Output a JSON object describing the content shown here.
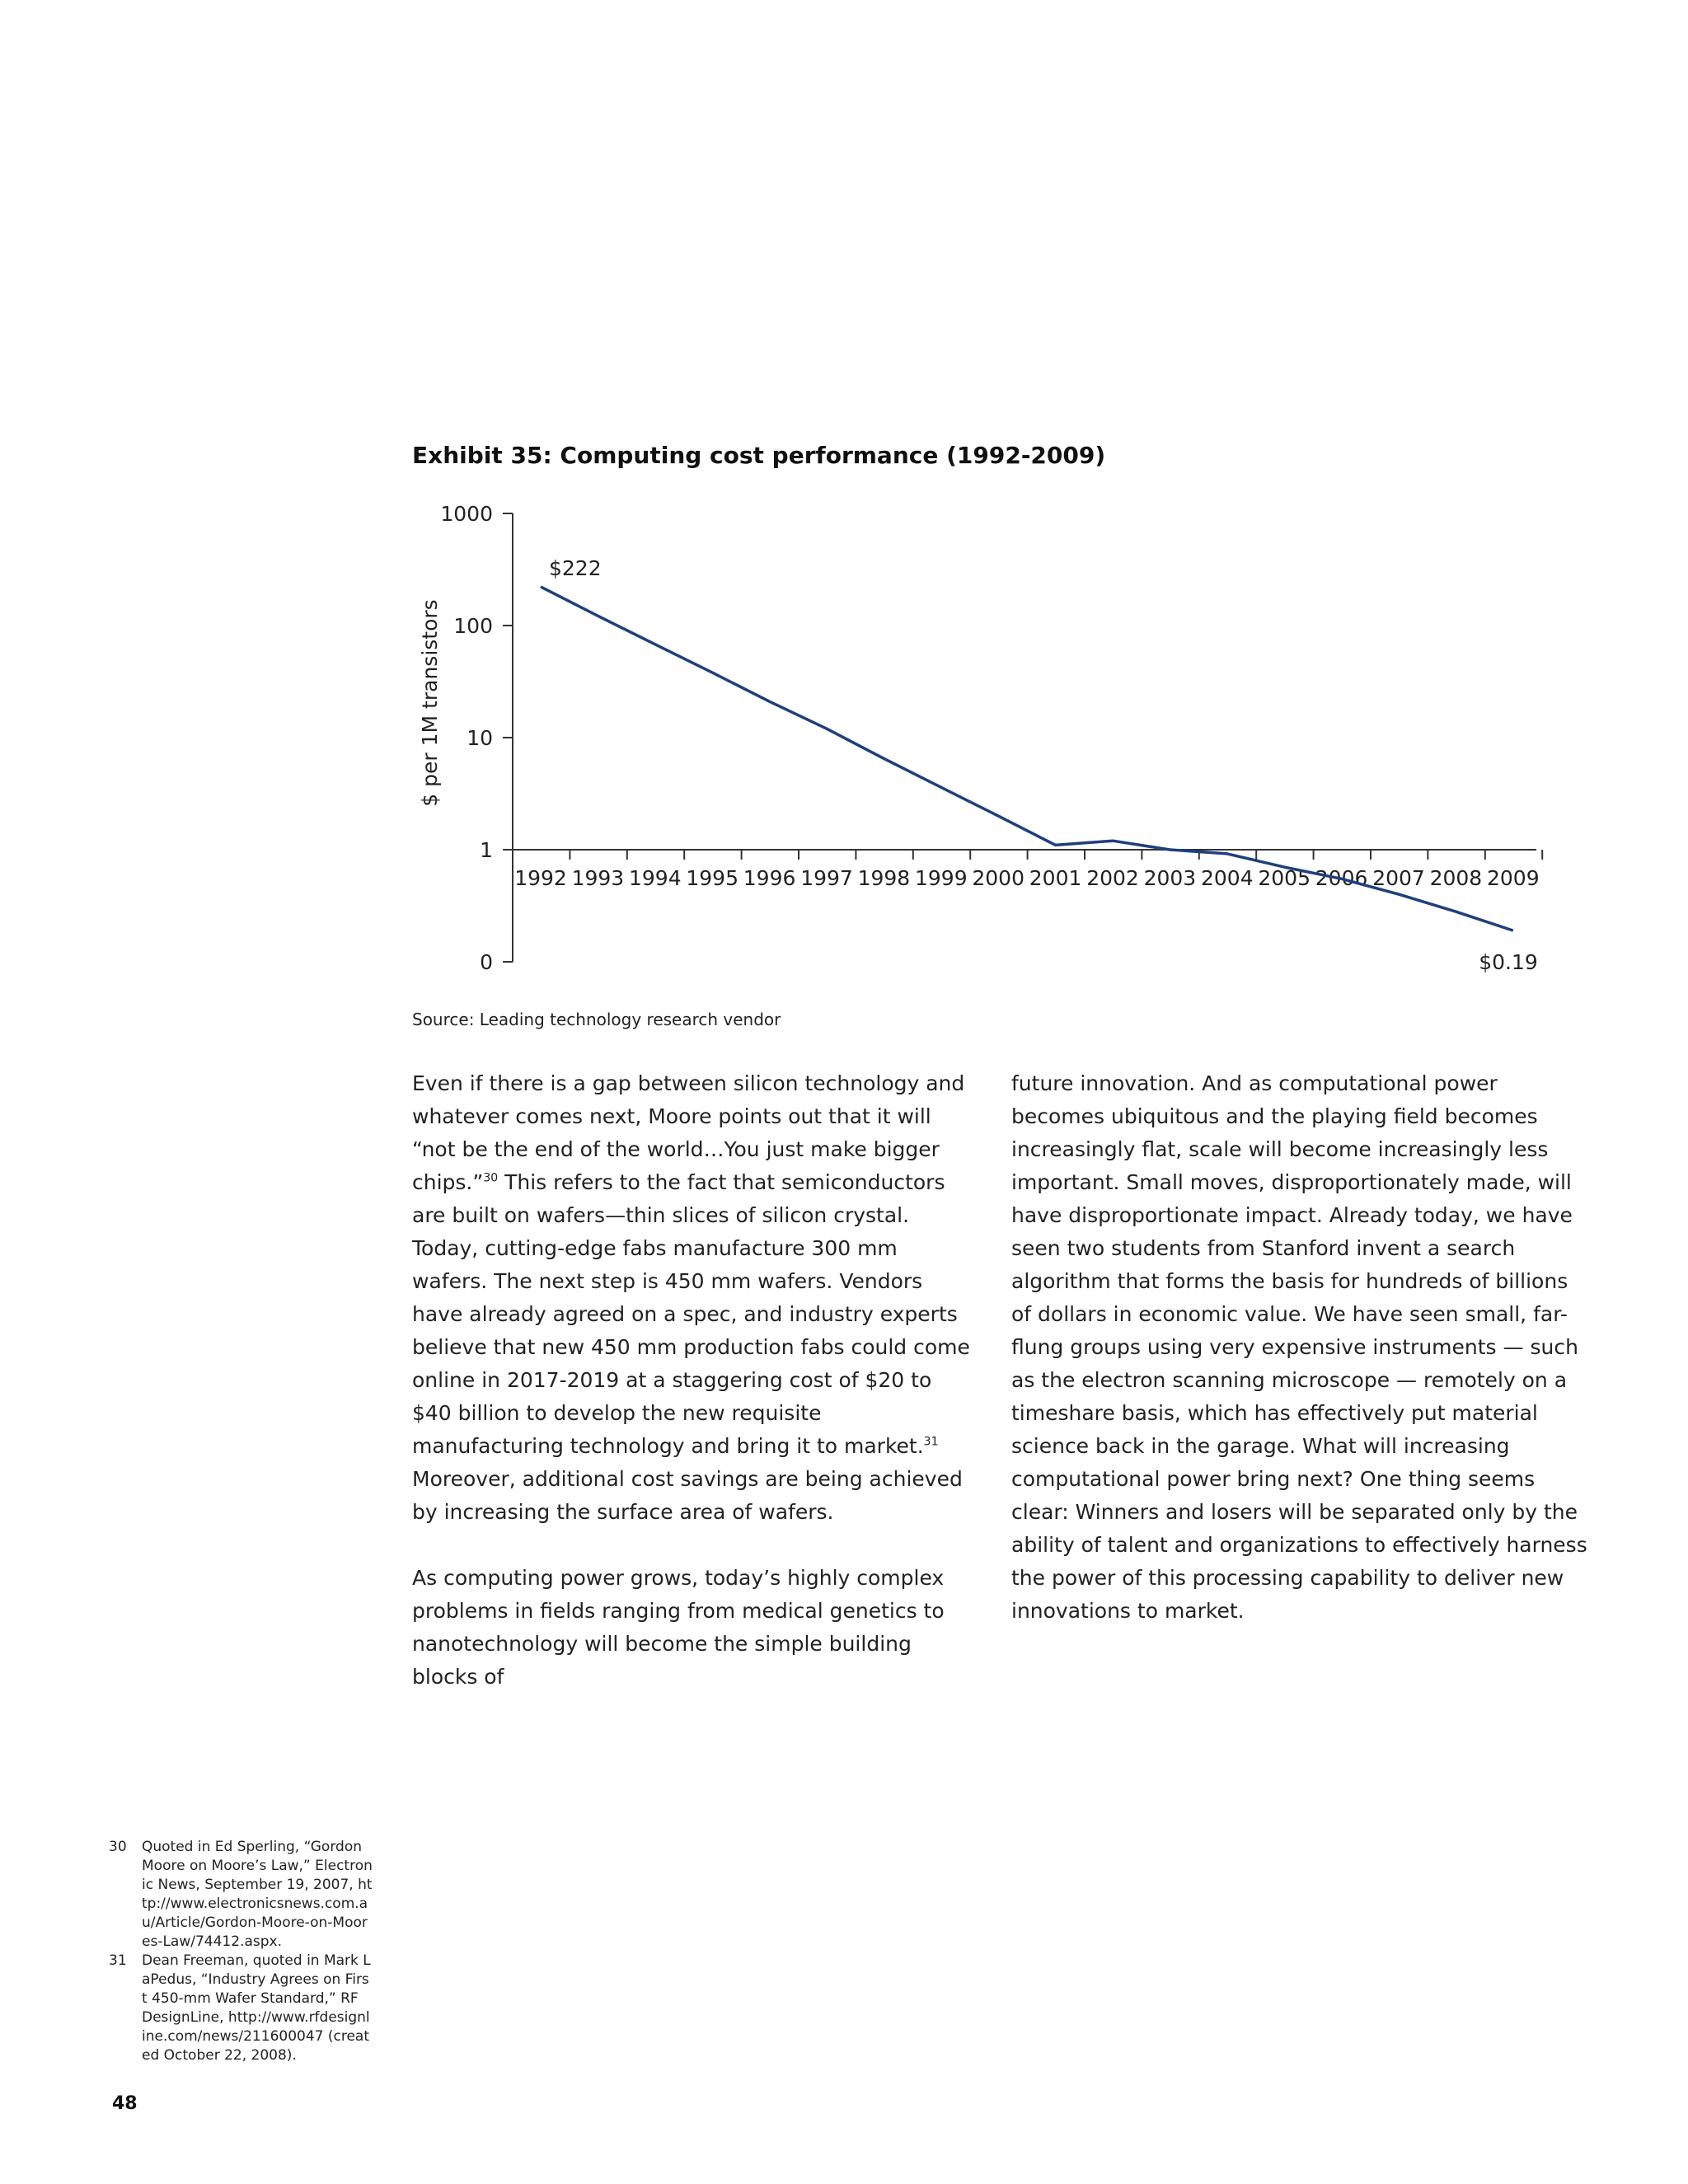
{
  "chart_data": {
    "type": "line",
    "title": "Exhibit 35: Computing cost performance (1992-2009)",
    "ylabel": "$ per 1M transistors",
    "xlabel": "",
    "yscale": "log",
    "y_ticks": [
      "1000",
      "100",
      "10",
      "1",
      "0"
    ],
    "x": [
      "1992",
      "1993",
      "1994",
      "1995",
      "1996",
      "1997",
      "1998",
      "1999",
      "2000",
      "2001",
      "2002",
      "2003",
      "2004",
      "2005",
      "2006",
      "2007",
      "2008",
      "2009"
    ],
    "series": [
      {
        "values": [
          222,
          122,
          68,
          38,
          21,
          12,
          6.5,
          3.6,
          2.0,
          1.1,
          1.2,
          1.0,
          0.92,
          0.7,
          0.55,
          0.4,
          0.28,
          0.19
        ],
        "color": "#1f3f7f"
      }
    ],
    "data_labels": [
      {
        "text": "$222",
        "year": "1992"
      },
      {
        "text": "$0.19",
        "year": "2009"
      }
    ],
    "grid": false,
    "legend": "none",
    "source": "Source: Leading technology research vendor"
  },
  "body": {
    "left_paragraphs": [
      [
        {
          "t": "Even if there is a gap between silicon technology and whatever comes next, Moore points out that it will “not be the end of the world…You just make bigger chips.”"
        },
        {
          "sup": "30"
        },
        {
          "t": " This refers to the fact that semiconductors are built on wafers—thin slices of silicon crystal. Today, cutting-edge fabs manufacture 300 mm wafers. The next step is 450 mm wafers. Vendors have already agreed on a spec, and industry experts believe that new 450 mm production fabs could come online in 2017-2019 at a staggering cost of $20 to $40 billion to develop the new requisite manufacturing technology and bring it to market."
        },
        {
          "sup": "31"
        },
        {
          "t": " Moreover, additional cost savings are being achieved by increasing the surface area of wafers."
        }
      ],
      [
        {
          "t": "As computing power grows, today’s highly complex problems in fields ranging from medical genetics to nanotechnology will become the simple building blocks of"
        }
      ]
    ],
    "right_paragraph": "future innovation. And as computational power becomes ubiquitous and the playing field becomes increasingly flat, scale will become increasingly less important. Small moves, disproportionately made, will have disproportionate impact. Already today, we have seen two students from Stanford invent a search algorithm that forms the basis for hundreds of billions of dollars in economic value. We have seen small, far-flung groups using very expensive instruments — such as the electron scanning microscope — remotely on a timeshare basis, which has effectively put material science back in the garage. What will increasing computational power bring next? One thing seems clear: Winners and losers will be separated only by the ability of talent and organizations to effectively harness the power of this processing capability to deliver new innovations to market."
  },
  "footnotes": [
    {
      "num": "30",
      "text": "Quoted in Ed Sperling, “Gordon Moore on Moore’s Law,” Electronic News, September 19, 2007, http://www.electronicsnews.com.au/Article/Gordon-Moore-on-Moores-Law/74412.aspx."
    },
    {
      "num": "31",
      "text": "Dean Freeman, quoted in Mark LaPedus, “Industry Agrees on First 450-mm Wafer Standard,” RF DesignLine, http://www.rfdesignline.com/news/211600047 (created October 22, 2008)."
    }
  ],
  "page_number": "48"
}
